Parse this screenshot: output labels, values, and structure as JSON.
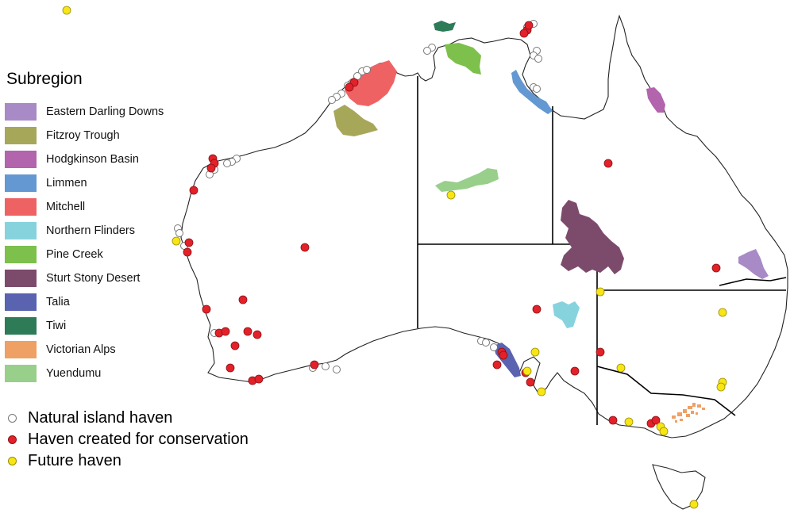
{
  "legend": {
    "title": "Subregion",
    "items": [
      {
        "label": "Eastern Darling Downs",
        "color": "#a88ac6"
      },
      {
        "label": "Fitzroy Trough",
        "color": "#a7a75a"
      },
      {
        "label": "Hodgkinson Basin",
        "color": "#b264ad"
      },
      {
        "label": "Limmen",
        "color": "#6498d2"
      },
      {
        "label": "Mitchell",
        "color": "#ef6264"
      },
      {
        "label": "Northern Flinders",
        "color": "#86d3de"
      },
      {
        "label": "Pine Creek",
        "color": "#7dc04b"
      },
      {
        "label": "Sturt Stony Desert",
        "color": "#7c4b6c"
      },
      {
        "label": "Talia",
        "color": "#5a63b0"
      },
      {
        "label": "Tiwi",
        "color": "#2d7b57"
      },
      {
        "label": "Victorian Alps",
        "color": "#efa065"
      },
      {
        "label": "Yuendumu",
        "color": "#98cf8a"
      }
    ]
  },
  "haven_legend": [
    {
      "label": "Natural island haven",
      "fill": "#ffffff",
      "stroke": "#777777"
    },
    {
      "label": "Haven created for conservation",
      "fill": "#e32129",
      "stroke": "#8a1015"
    },
    {
      "label": "Future haven",
      "fill": "#f7e516",
      "stroke": "#9a8c00"
    }
  ],
  "colors": {
    "coastline": "#222222",
    "borders": "#000000"
  },
  "havens": {
    "natural_island_count": 38,
    "conservation_count": 48,
    "future_count": 20
  }
}
